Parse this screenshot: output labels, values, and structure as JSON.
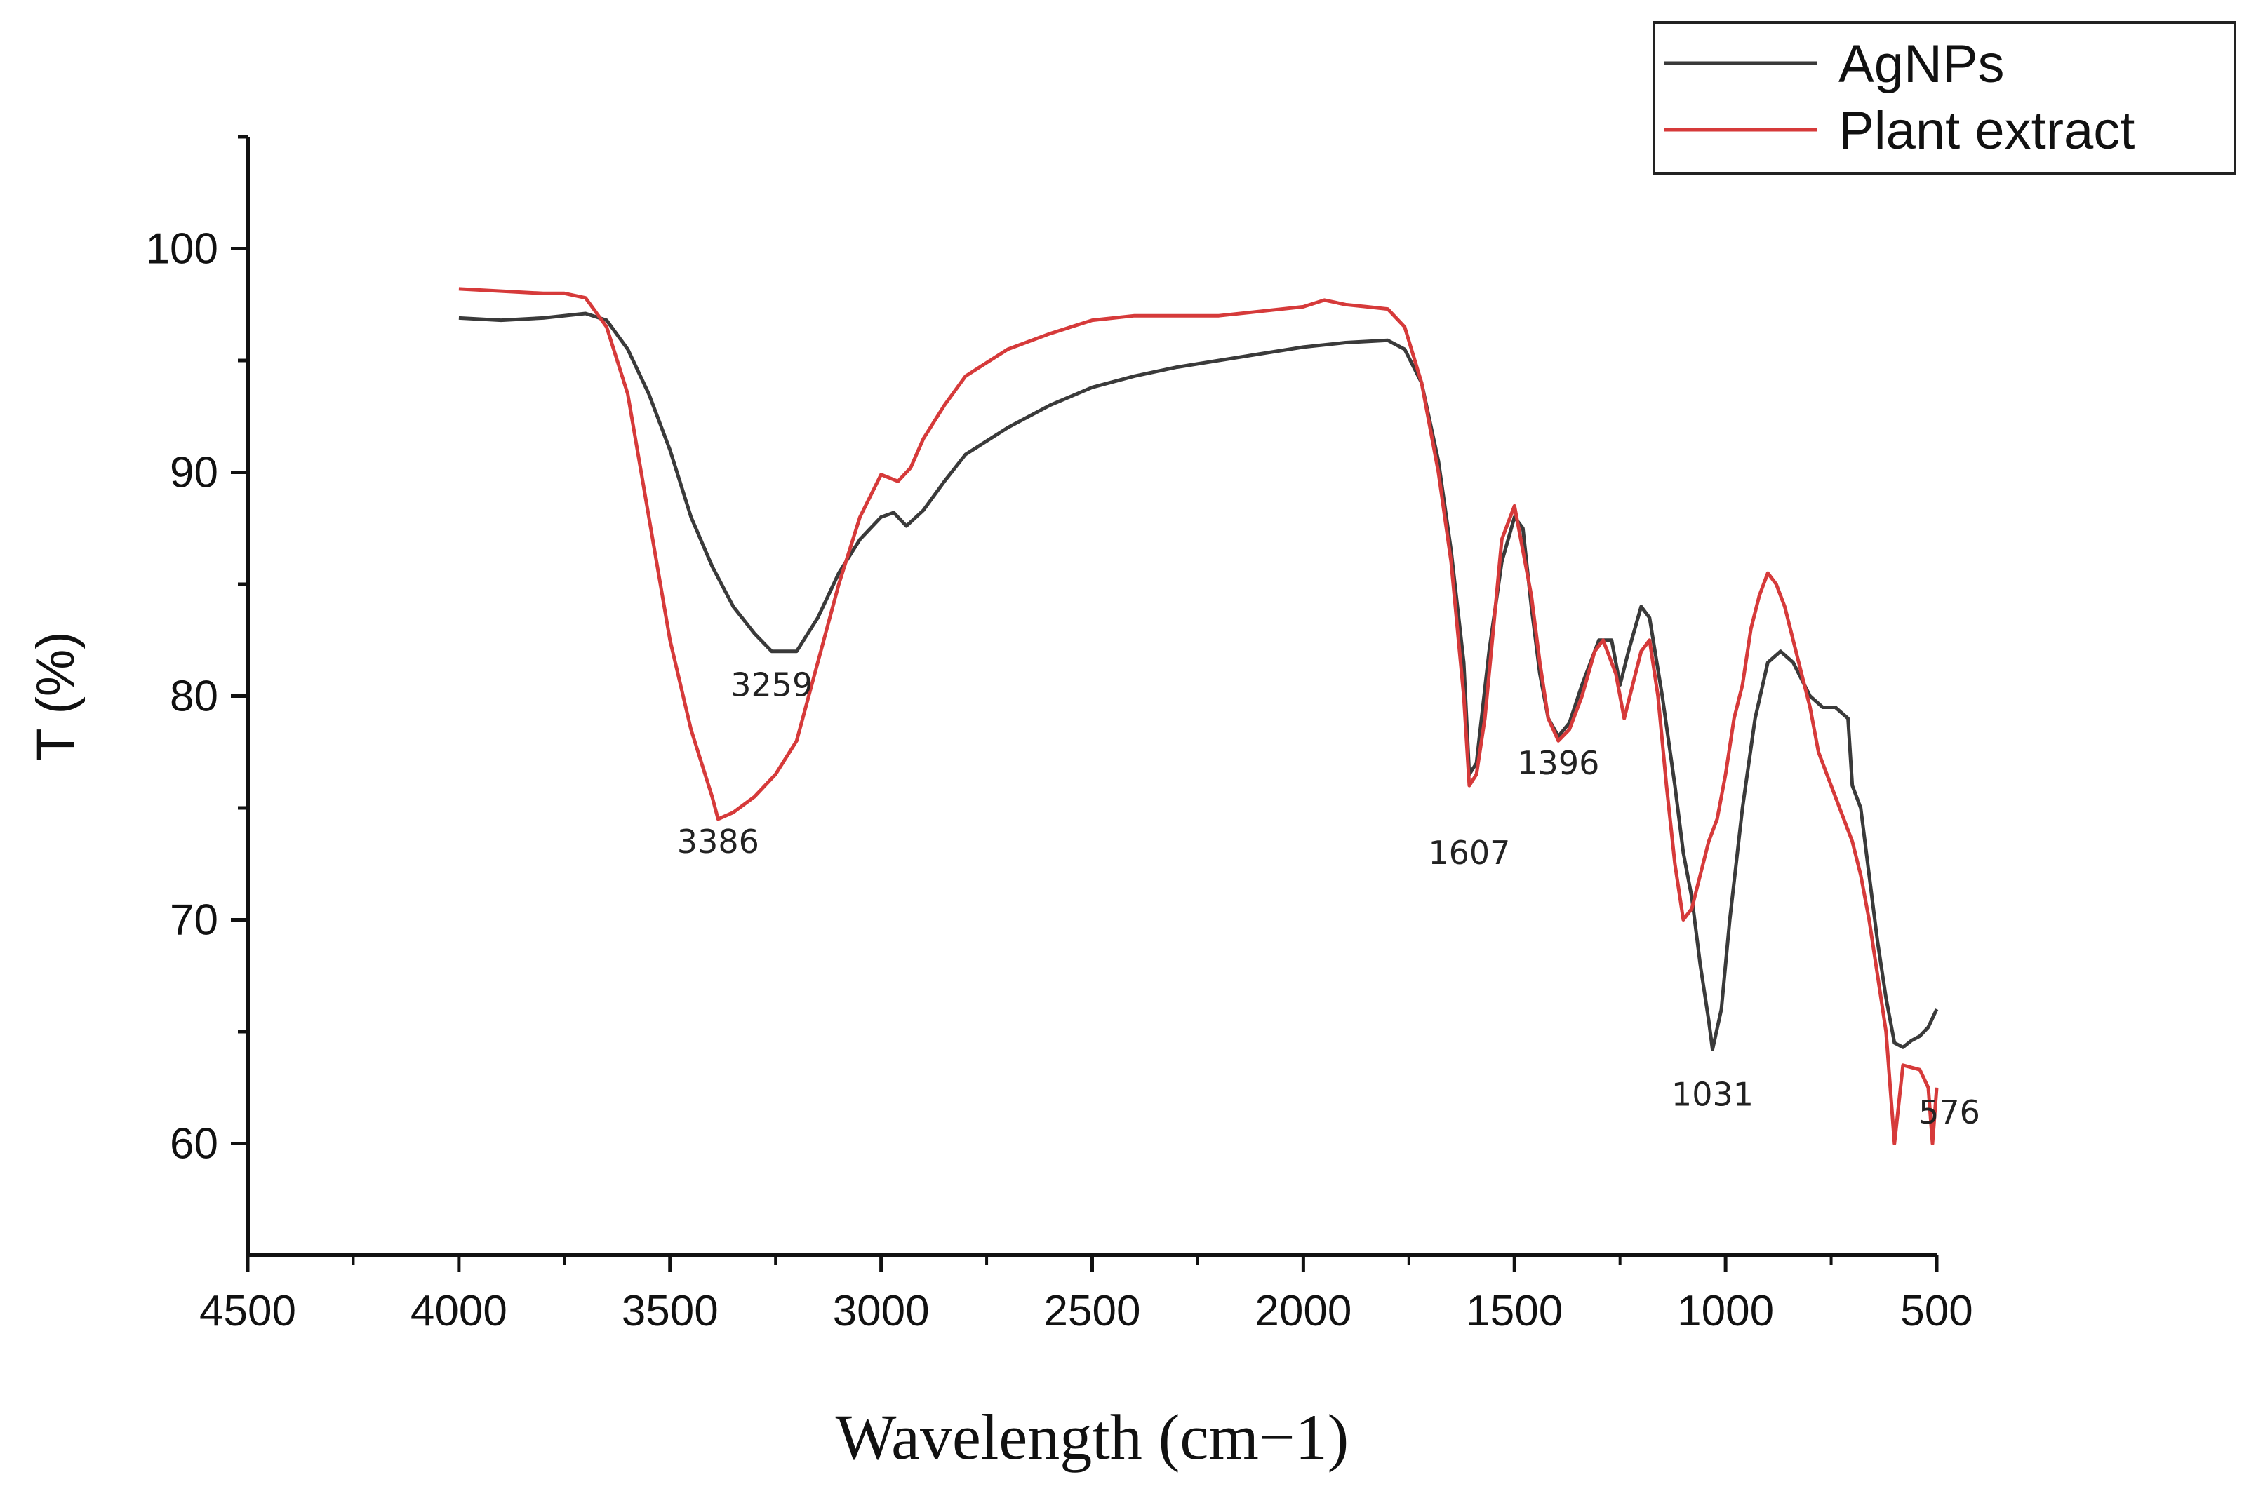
{
  "chart_data": {
    "type": "line",
    "title": "",
    "xlabel": "Wavelength (cm−1)",
    "ylabel": "T (%)",
    "xlim": [
      4500,
      500
    ],
    "ylim": [
      55,
      105
    ],
    "x_ticks": [
      4500,
      4000,
      3500,
      3000,
      2500,
      2000,
      1500,
      1000,
      500
    ],
    "y_ticks": [
      60,
      70,
      80,
      90,
      100
    ],
    "legend_position": "top-right",
    "series": [
      {
        "name": "AgNPs",
        "color": "#3a3a3a",
        "points": [
          [
            4000,
            96.9
          ],
          [
            3900,
            96.8
          ],
          [
            3800,
            96.9
          ],
          [
            3700,
            97.1
          ],
          [
            3650,
            96.8
          ],
          [
            3600,
            95.5
          ],
          [
            3550,
            93.5
          ],
          [
            3500,
            91.0
          ],
          [
            3450,
            88.0
          ],
          [
            3400,
            85.8
          ],
          [
            3350,
            84.0
          ],
          [
            3300,
            82.8
          ],
          [
            3259,
            82.0
          ],
          [
            3200,
            82.0
          ],
          [
            3150,
            83.5
          ],
          [
            3100,
            85.5
          ],
          [
            3050,
            87.0
          ],
          [
            3000,
            88.0
          ],
          [
            2970,
            88.2
          ],
          [
            2940,
            87.6
          ],
          [
            2900,
            88.3
          ],
          [
            2850,
            89.6
          ],
          [
            2800,
            90.8
          ],
          [
            2700,
            92.0
          ],
          [
            2600,
            93.0
          ],
          [
            2500,
            93.8
          ],
          [
            2400,
            94.3
          ],
          [
            2300,
            94.7
          ],
          [
            2200,
            95.0
          ],
          [
            2100,
            95.3
          ],
          [
            2000,
            95.6
          ],
          [
            1900,
            95.8
          ],
          [
            1800,
            95.9
          ],
          [
            1760,
            95.5
          ],
          [
            1720,
            94.0
          ],
          [
            1680,
            90.5
          ],
          [
            1650,
            86.5
          ],
          [
            1620,
            81.5
          ],
          [
            1607,
            76.5
          ],
          [
            1590,
            77.0
          ],
          [
            1560,
            82.0
          ],
          [
            1530,
            86.0
          ],
          [
            1500,
            88.0
          ],
          [
            1480,
            87.5
          ],
          [
            1460,
            84.0
          ],
          [
            1440,
            81.0
          ],
          [
            1420,
            79.0
          ],
          [
            1396,
            78.2
          ],
          [
            1370,
            78.8
          ],
          [
            1340,
            80.5
          ],
          [
            1300,
            82.5
          ],
          [
            1270,
            82.5
          ],
          [
            1250,
            80.5
          ],
          [
            1230,
            82.0
          ],
          [
            1200,
            84.0
          ],
          [
            1180,
            83.5
          ],
          [
            1150,
            80.0
          ],
          [
            1120,
            76.0
          ],
          [
            1100,
            73.0
          ],
          [
            1080,
            71.0
          ],
          [
            1060,
            68.0
          ],
          [
            1040,
            65.5
          ],
          [
            1031,
            64.2
          ],
          [
            1010,
            66.0
          ],
          [
            990,
            70.0
          ],
          [
            960,
            75.0
          ],
          [
            930,
            79.0
          ],
          [
            900,
            81.5
          ],
          [
            870,
            82.0
          ],
          [
            840,
            81.5
          ],
          [
            800,
            80.0
          ],
          [
            770,
            79.5
          ],
          [
            740,
            79.5
          ],
          [
            710,
            79.0
          ],
          [
            700,
            76.0
          ],
          [
            680,
            75.0
          ],
          [
            660,
            72.0
          ],
          [
            640,
            69.0
          ],
          [
            620,
            66.5
          ],
          [
            600,
            64.5
          ],
          [
            580,
            64.3
          ],
          [
            560,
            64.6
          ],
          [
            540,
            64.8
          ],
          [
            520,
            65.2
          ],
          [
            500,
            66.0
          ]
        ]
      },
      {
        "name": "Plant extract",
        "color": "#d63a3a",
        "points": [
          [
            4000,
            98.2
          ],
          [
            3900,
            98.1
          ],
          [
            3800,
            98.0
          ],
          [
            3750,
            98.0
          ],
          [
            3700,
            97.8
          ],
          [
            3650,
            96.5
          ],
          [
            3600,
            93.5
          ],
          [
            3550,
            88.0
          ],
          [
            3500,
            82.5
          ],
          [
            3450,
            78.5
          ],
          [
            3400,
            75.5
          ],
          [
            3386,
            74.5
          ],
          [
            3350,
            74.8
          ],
          [
            3300,
            75.5
          ],
          [
            3250,
            76.5
          ],
          [
            3200,
            78.0
          ],
          [
            3150,
            81.5
          ],
          [
            3100,
            85.0
          ],
          [
            3050,
            88.0
          ],
          [
            3000,
            89.9
          ],
          [
            2960,
            89.6
          ],
          [
            2930,
            90.2
          ],
          [
            2900,
            91.5
          ],
          [
            2850,
            93.0
          ],
          [
            2800,
            94.3
          ],
          [
            2700,
            95.5
          ],
          [
            2600,
            96.2
          ],
          [
            2500,
            96.8
          ],
          [
            2400,
            97.0
          ],
          [
            2300,
            97.0
          ],
          [
            2200,
            97.0
          ],
          [
            2100,
            97.2
          ],
          [
            2000,
            97.4
          ],
          [
            1950,
            97.7
          ],
          [
            1900,
            97.5
          ],
          [
            1850,
            97.4
          ],
          [
            1800,
            97.3
          ],
          [
            1760,
            96.5
          ],
          [
            1720,
            94.0
          ],
          [
            1680,
            90.0
          ],
          [
            1650,
            86.0
          ],
          [
            1620,
            80.0
          ],
          [
            1607,
            76.0
          ],
          [
            1590,
            76.5
          ],
          [
            1570,
            79.0
          ],
          [
            1550,
            83.0
          ],
          [
            1530,
            87.0
          ],
          [
            1500,
            88.5
          ],
          [
            1480,
            86.5
          ],
          [
            1460,
            84.5
          ],
          [
            1440,
            81.5
          ],
          [
            1420,
            79.0
          ],
          [
            1396,
            78.0
          ],
          [
            1370,
            78.5
          ],
          [
            1340,
            80.0
          ],
          [
            1310,
            82.0
          ],
          [
            1290,
            82.5
          ],
          [
            1260,
            81.0
          ],
          [
            1240,
            79.0
          ],
          [
            1220,
            80.5
          ],
          [
            1200,
            82.0
          ],
          [
            1180,
            82.5
          ],
          [
            1160,
            80.0
          ],
          [
            1140,
            76.0
          ],
          [
            1120,
            72.5
          ],
          [
            1100,
            70.0
          ],
          [
            1080,
            70.5
          ],
          [
            1060,
            72.0
          ],
          [
            1040,
            73.5
          ],
          [
            1020,
            74.5
          ],
          [
            1000,
            76.5
          ],
          [
            980,
            79.0
          ],
          [
            960,
            80.5
          ],
          [
            940,
            83.0
          ],
          [
            920,
            84.5
          ],
          [
            900,
            85.5
          ],
          [
            880,
            85.0
          ],
          [
            860,
            84.0
          ],
          [
            840,
            82.5
          ],
          [
            820,
            81.0
          ],
          [
            800,
            79.5
          ],
          [
            780,
            77.5
          ],
          [
            760,
            76.5
          ],
          [
            740,
            75.5
          ],
          [
            720,
            74.5
          ],
          [
            700,
            73.5
          ],
          [
            680,
            72.0
          ],
          [
            660,
            70.0
          ],
          [
            640,
            67.5
          ],
          [
            620,
            65.0
          ],
          [
            600,
            60.0
          ],
          [
            580,
            63.5
          ],
          [
            560,
            63.4
          ],
          [
            540,
            63.3
          ],
          [
            520,
            62.5
          ],
          [
            510,
            60.0
          ],
          [
            500,
            62.5
          ]
        ]
      }
    ],
    "annotations": [
      {
        "text": "3259",
        "x": 3259,
        "y": 80.0
      },
      {
        "text": "3386",
        "x": 3386,
        "y": 73.0
      },
      {
        "text": "1607",
        "x": 1607,
        "y": 72.5
      },
      {
        "text": "1396",
        "x": 1396,
        "y": 76.5
      },
      {
        "text": "1031",
        "x": 1031,
        "y": 61.7
      },
      {
        "text": "576",
        "x": 470,
        "y": 60.9
      }
    ]
  }
}
